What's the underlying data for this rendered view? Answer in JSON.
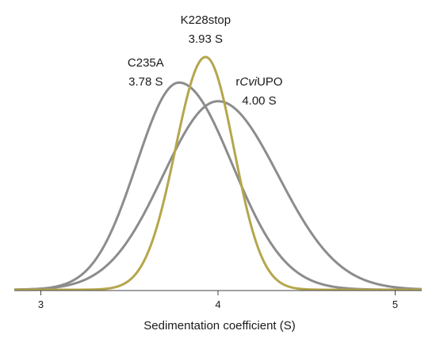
{
  "chart_data": {
    "type": "line",
    "title": "",
    "xlabel": "Sedimentation coefficient (S)",
    "ylabel": "",
    "xlim": [
      2.85,
      5.15
    ],
    "ylim": [
      0,
      1
    ],
    "grid": false,
    "legend": "none (labels placed above peaks)",
    "xticks": [
      3,
      4,
      5
    ],
    "xtick_labels": [
      "3",
      "4",
      "5"
    ],
    "series": [
      {
        "name_parts": [
          {
            "text": "C235A",
            "italic": false
          }
        ],
        "peak_label": "3.78 S",
        "color": "#8c8c8c",
        "peak_s": 3.78,
        "peak_height": 0.89,
        "sigma_left": 0.24,
        "sigma_right": 0.3,
        "x": [
          3.0,
          3.1,
          3.2,
          3.3,
          3.4,
          3.5,
          3.6,
          3.7,
          3.78,
          3.9,
          4.0,
          4.1,
          4.2,
          4.3,
          4.4,
          4.5,
          4.6,
          4.7,
          4.8,
          4.9
        ],
        "values": [
          0.0,
          0.02,
          0.06,
          0.14,
          0.3,
          0.5,
          0.7,
          0.84,
          0.89,
          0.82,
          0.67,
          0.5,
          0.35,
          0.22,
          0.13,
          0.07,
          0.035,
          0.017,
          0.008,
          0.0
        ]
      },
      {
        "name_parts": [
          {
            "text": "K228stop",
            "italic": false
          }
        ],
        "peak_label": "3.93 S",
        "color": "#b5a64c",
        "peak_s": 3.93,
        "peak_height": 1.0,
        "sigma_left": 0.17,
        "sigma_right": 0.16,
        "x": [
          3.4,
          3.5,
          3.6,
          3.7,
          3.8,
          3.93,
          4.0,
          4.1,
          4.2,
          4.3,
          4.4,
          4.5
        ],
        "values": [
          0.0,
          0.04,
          0.15,
          0.4,
          0.75,
          1.0,
          0.92,
          0.58,
          0.25,
          0.07,
          0.01,
          0.0
        ]
      },
      {
        "name_parts": [
          {
            "text": "r",
            "italic": false
          },
          {
            "text": "Cvi",
            "italic": true
          },
          {
            "text": "UPO",
            "italic": false
          }
        ],
        "peak_label": "4.00 S",
        "color": "#8c8c8c",
        "peak_s": 4.0,
        "peak_height": 0.81,
        "sigma_left": 0.31,
        "sigma_right": 0.34,
        "x": [
          3.0,
          3.2,
          3.4,
          3.6,
          3.8,
          4.0,
          4.2,
          4.4,
          4.6,
          4.8,
          5.0,
          5.1
        ],
        "values": [
          0.0,
          0.03,
          0.13,
          0.35,
          0.65,
          0.81,
          0.69,
          0.41,
          0.17,
          0.05,
          0.01,
          0.0
        ]
      }
    ]
  }
}
